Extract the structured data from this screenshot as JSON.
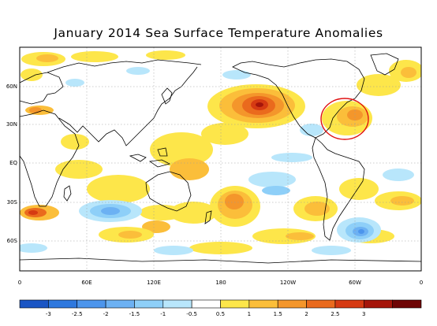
{
  "title": "January 2014 Sea Surface Temperature Anomalies",
  "lat_labels": [
    "60N",
    "30N",
    "EQ",
    "30S",
    "60S"
  ],
  "lon_labels": [
    "0",
    "60E",
    "120E",
    "180",
    "120W",
    "60W",
    "0"
  ],
  "colorbar": {
    "labels": [
      "-3",
      "-2.5",
      "-2",
      "-1.5",
      "-1",
      "-0.5",
      "0.5",
      "1",
      "1.5",
      "2",
      "2.5",
      "3"
    ],
    "colors": [
      "#1a55c4",
      "#2e78de",
      "#4c95ec",
      "#6cb1f3",
      "#8ecff8",
      "#b8e6fb",
      "#ffffff",
      "#fde64a",
      "#fbbe3a",
      "#f4962b",
      "#ea6a1d",
      "#d63a12",
      "#a5150a",
      "#6e0505"
    ]
  },
  "highlight": {
    "shape": "ellipse",
    "color": "#e01010"
  }
}
